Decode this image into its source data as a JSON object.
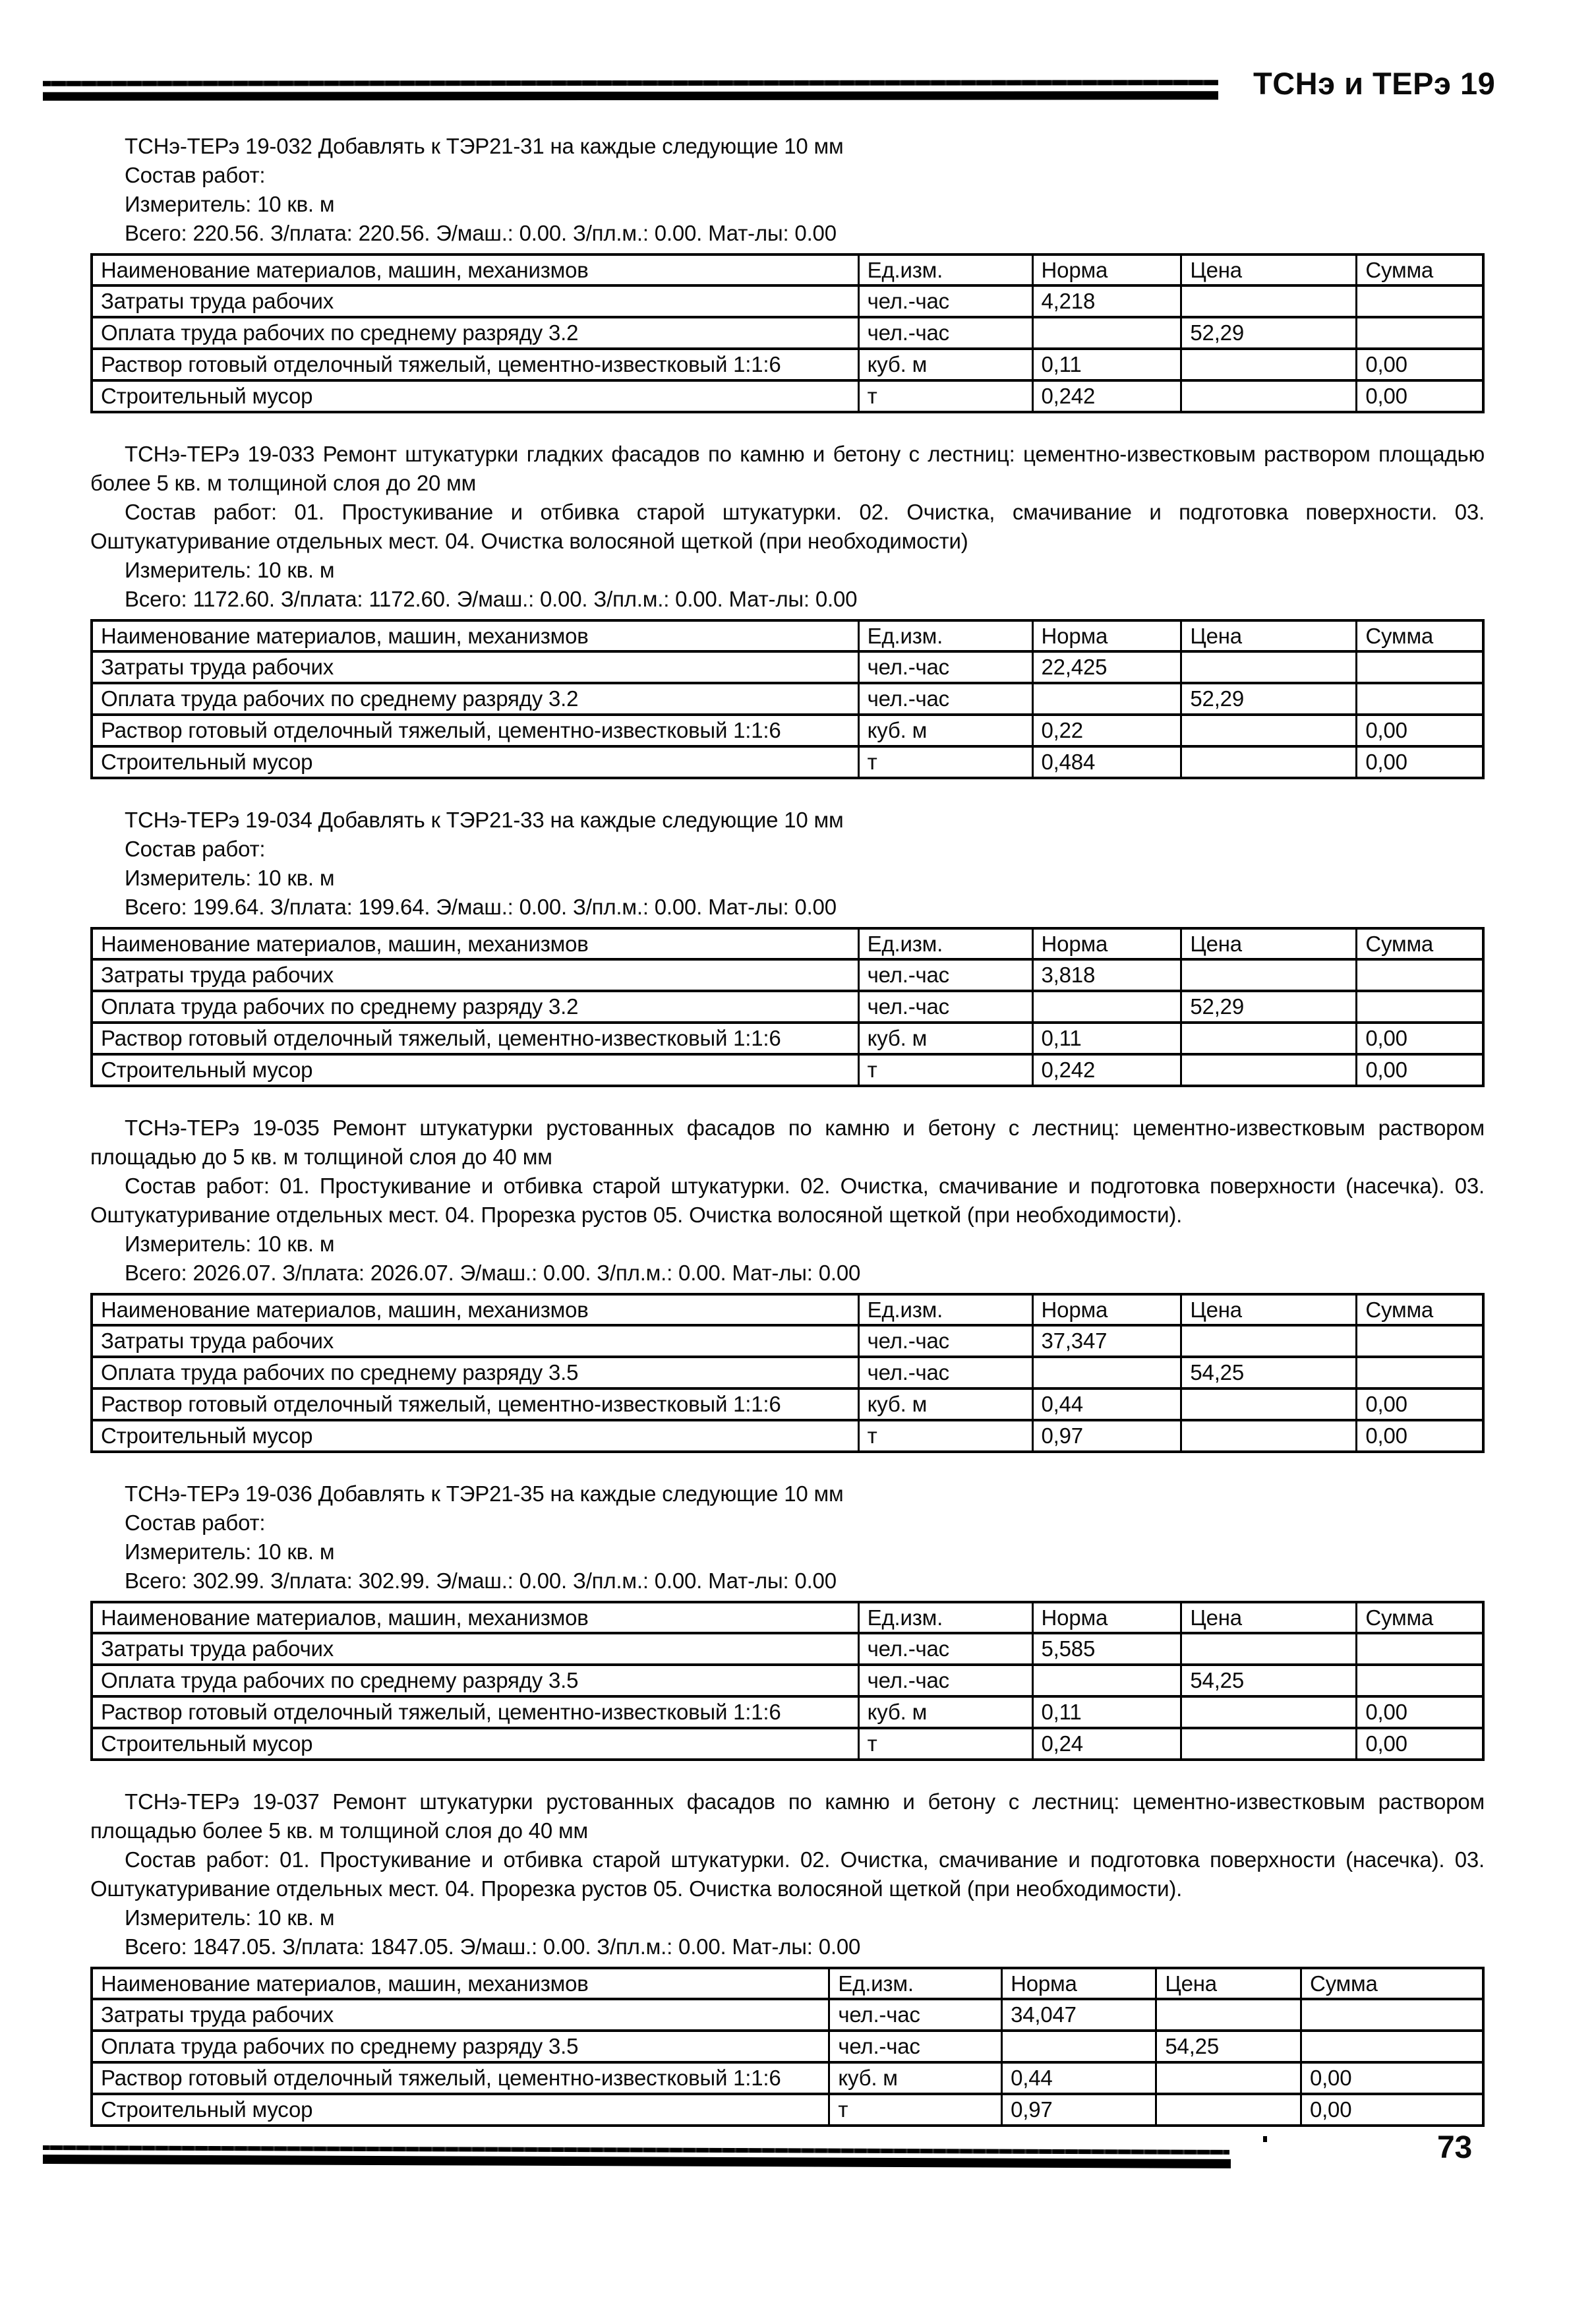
{
  "page_header": {
    "title": "ТСНэ и ТЕРэ 19"
  },
  "page_number": "73",
  "table_headers": [
    "Наименование материалов, машин, механизмов",
    "Ед.изм.",
    "Норма",
    "Цена",
    "Сумма"
  ],
  "sections": [
    {
      "title": "ТСНэ-ТЕРэ 19-032 Добавлять к ТЭР21-31 на каждые следующие 10 мм",
      "sostav": "Состав работ:",
      "izmeritel": "Измеритель: 10 кв. м",
      "vsego": "Всего: 220.56. З/плата: 220.56. Э/маш.: 0.00. З/пл.м.: 0.00. Мат-лы: 0.00",
      "rows": [
        [
          "Затраты труда рабочих",
          "чел.-час",
          "4,218",
          "",
          ""
        ],
        [
          "Оплата труда рабочих по среднему разряду 3.2",
          "чел.-час",
          "",
          "52,29",
          ""
        ],
        [
          "Раствор готовый отделочный тяжелый, цементно-известковый 1:1:6",
          "куб. м",
          "0,11",
          "",
          "0,00"
        ],
        [
          "Строительный мусор",
          "т",
          "0,242",
          "",
          "0,00"
        ]
      ]
    },
    {
      "title": "ТСНэ-ТЕРэ 19-033 Ремонт штукатурки гладких фасадов по камню и бетону с лестниц: цементно-известковым раствором площадью более 5 кв. м толщиной слоя до 20 мм",
      "sostav": "Состав работ: 01. Простукивание и отбивка старой штукатурки. 02. Очистка, смачивание и подготовка поверхности. 03. Оштукатуривание отдельных мест. 04. Очистка волосяной щеткой (при необходимости)",
      "izmeritel": "Измеритель: 10 кв. м",
      "vsego": "Всего: 1172.60. З/плата: 1172.60. Э/маш.: 0.00. З/пл.м.: 0.00. Мат-лы: 0.00",
      "rows": [
        [
          "Затраты труда рабочих",
          "чел.-час",
          "22,425",
          "",
          ""
        ],
        [
          "Оплата труда рабочих по среднему разряду 3.2",
          "чел.-час",
          "",
          "52,29",
          ""
        ],
        [
          "Раствор готовый отделочный тяжелый, цементно-известковый 1:1:6",
          "куб. м",
          "0,22",
          "",
          "0,00"
        ],
        [
          "Строительный мусор",
          "т",
          "0,484",
          "",
          "0,00"
        ]
      ]
    },
    {
      "title": "ТСНэ-ТЕРэ 19-034 Добавлять к ТЭР21-33 на каждые следующие 10 мм",
      "sostav": "Состав работ:",
      "izmeritel": "Измеритель: 10 кв. м",
      "vsego": "Всего: 199.64. З/плата: 199.64. Э/маш.: 0.00. З/пл.м.: 0.00. Мат-лы: 0.00",
      "rows": [
        [
          "Затраты труда рабочих",
          "чел.-час",
          "3,818",
          "",
          ""
        ],
        [
          "Оплата труда рабочих по среднему разряду 3.2",
          "чел.-час",
          "",
          "52,29",
          ""
        ],
        [
          "Раствор готовый отделочный тяжелый, цементно-известковый 1:1:6",
          "куб. м",
          "0,11",
          "",
          "0,00"
        ],
        [
          "Строительный мусор",
          "т",
          "0,242",
          "",
          "0,00"
        ]
      ]
    },
    {
      "title": "ТСНэ-ТЕРэ 19-035 Ремонт штукатурки рустованных фасадов по камню и бетону с лестниц: цементно-известковым раствором площадью до 5 кв. м толщиной слоя до 40 мм",
      "sostav": "Состав работ: 01. Простукивание и отбивка старой штукатурки. 02. Очистка, смачивание и подготовка поверхности (насечка). 03. Оштукатуривание отдельных мест. 04. Прорезка рустов 05. Очистка волосяной щеткой (при необходимости).",
      "izmeritel": "Измеритель: 10 кв. м",
      "vsego": "Всего: 2026.07. З/плата: 2026.07. Э/маш.: 0.00. З/пл.м.: 0.00. Мат-лы: 0.00",
      "rows": [
        [
          "Затраты труда рабочих",
          "чел.-час",
          "37,347",
          "",
          ""
        ],
        [
          "Оплата труда рабочих по среднему разряду 3.5",
          "чел.-час",
          "",
          "54,25",
          ""
        ],
        [
          "Раствор готовый отделочный тяжелый, цементно-известковый 1:1:6",
          "куб. м",
          "0,44",
          "",
          "0,00"
        ],
        [
          "Строительный мусор",
          "т",
          "0,97",
          "",
          "0,00"
        ]
      ]
    },
    {
      "title": "ТСНэ-ТЕРэ 19-036 Добавлять к ТЭР21-35 на каждые следующие 10 мм",
      "sostav": "Состав работ:",
      "izmeritel": "Измеритель: 10 кв. м",
      "vsego": "Всего: 302.99. З/плата: 302.99. Э/маш.: 0.00. З/пл.м.: 0.00. Мат-лы: 0.00",
      "rows": [
        [
          "Затраты труда рабочих",
          "чел.-час",
          "5,585",
          "",
          ""
        ],
        [
          "Оплата труда рабочих по среднему разряду 3.5",
          "чел.-час",
          "",
          "54,25",
          ""
        ],
        [
          "Раствор готовый отделочный тяжелый, цементно-известковый 1:1:6",
          "куб. м",
          "0,11",
          "",
          "0,00"
        ],
        [
          "Строительный мусор",
          "т",
          "0,24",
          "",
          "0,00"
        ]
      ]
    },
    {
      "title": "ТСНэ-ТЕРэ 19-037 Ремонт штукатурки рустованных фасадов по камню и бетону с лестниц: цементно-известковым раствором площадью более 5 кв. м толщиной слоя до 40 мм",
      "sostav": "Состав работ: 01. Простукивание и отбивка старой штукатурки. 02. Очистка, смачивание и подготовка поверхности (насечка). 03. Оштукатуривание отдельных мест. 04. Прорезка рустов 05. Очистка волосяной щеткой (при необходимости).",
      "izmeritel": "Измеритель: 10 кв. м",
      "vsego": "Всего: 1847.05. З/плата: 1847.05. Э/маш.: 0.00. З/пл.м.: 0.00. Мат-лы: 0.00",
      "rows": [
        [
          "Затраты труда рабочих",
          "чел.-час",
          "34,047",
          "",
          ""
        ],
        [
          "Оплата труда рабочих по среднему разряду 3.5",
          "чел.-час",
          "",
          "54,25",
          ""
        ],
        [
          "Раствор готовый отделочный тяжелый, цементно-известковый 1:1:6",
          "куб. м",
          "0,44",
          "",
          "0,00"
        ],
        [
          "Строительный мусор",
          "т",
          "0,97",
          "",
          "0,00"
        ]
      ]
    }
  ]
}
